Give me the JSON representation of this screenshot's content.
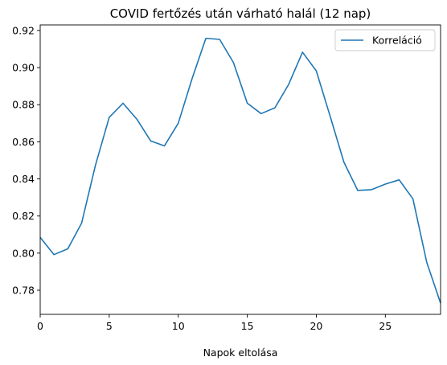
{
  "chart_data": {
    "type": "line",
    "title": "COVID fertőzés után várható halál (12 nap)",
    "xlabel": "Napok eltolása",
    "ylabel": "",
    "xlim": [
      0,
      29
    ],
    "ylim": [
      0.767,
      0.923
    ],
    "xticks": [
      0,
      5,
      10,
      15,
      20,
      25
    ],
    "yticks": [
      0.78,
      0.8,
      0.82,
      0.84,
      0.86,
      0.88,
      0.9,
      0.92
    ],
    "legend_position": "top-right",
    "grid": false,
    "series": [
      {
        "name": "Korreláció",
        "color": "#1f77b4",
        "x": [
          0,
          1,
          2,
          3,
          4,
          5,
          6,
          7,
          8,
          9,
          10,
          11,
          12,
          13,
          14,
          15,
          16,
          17,
          18,
          19,
          20,
          21,
          22,
          23,
          24,
          25,
          26,
          27,
          28,
          29
        ],
        "values": [
          0.8085,
          0.7992,
          0.8023,
          0.8162,
          0.8473,
          0.8732,
          0.8808,
          0.8722,
          0.8605,
          0.8578,
          0.87,
          0.894,
          0.9158,
          0.9152,
          0.9027,
          0.8808,
          0.8752,
          0.8783,
          0.891,
          0.9083,
          0.8982,
          0.8738,
          0.849,
          0.8338,
          0.8342,
          0.8372,
          0.8395,
          0.8292,
          0.795,
          0.773
        ]
      }
    ]
  }
}
